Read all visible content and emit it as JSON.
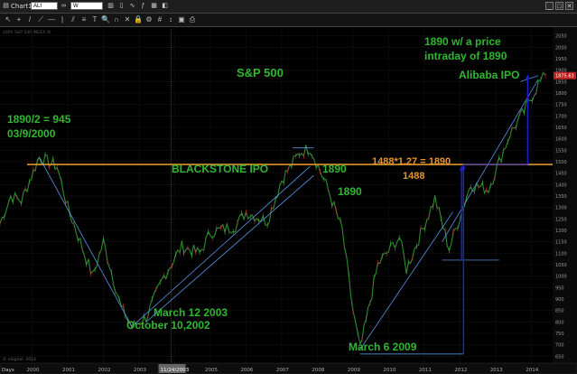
{
  "window": {
    "tab_label": "Chart1",
    "symbol": "ALI",
    "interval": "W"
  },
  "toolbar": {
    "icons": [
      "arrow-icon",
      "crosshair-icon",
      "trendline-icon",
      "ray-icon",
      "hline-icon",
      "vline-icon",
      "channel-icon",
      "fib-icon",
      "text-icon",
      "zoom-icon",
      "magnet-icon",
      "eraser-icon",
      "lock-icon",
      "settings-icon",
      "grid-icon",
      "scale-icon",
      "camera-icon",
      "print-icon"
    ],
    "glyphs": [
      "↖",
      "+",
      "/",
      "⟋",
      "—",
      "|",
      "⫽",
      "≡",
      "T",
      "🔍",
      "∩",
      "✕",
      "🔒",
      "⚙",
      "#",
      "↕",
      "▣",
      "⎙"
    ]
  },
  "chart_data": {
    "type": "line",
    "title": "S&P 500",
    "symbol_header": "$SPX  S&P 500 INDEX  W",
    "copyright": "© eSignal, 2014",
    "footer_left": "Days",
    "x_tick_labels": [
      "2000",
      "2001",
      "2002",
      "2003",
      "2004",
      "2005",
      "2006",
      "2007",
      "2008",
      "2009",
      "2010",
      "2011",
      "2012",
      "2013",
      "2014"
    ],
    "highlighted_x_label": "11/24/2003",
    "y_tick_labels": [
      650,
      700,
      750,
      800,
      850,
      900,
      950,
      1000,
      1050,
      1100,
      1150,
      1200,
      1250,
      1300,
      1350,
      1400,
      1450,
      1500,
      1550,
      1600,
      1650,
      1700,
      1750,
      1800,
      1850,
      1900,
      1950,
      2000,
      2050
    ],
    "ylim": [
      620,
      2080
    ],
    "xlim": [
      1999.1,
      2014.6
    ],
    "last_price_label": "1875.63",
    "series": [
      {
        "values_x": [
          1999.1,
          1999.4,
          1999.7,
          2000.2,
          2000.7,
          2001.0,
          2001.7,
          2002.0,
          2002.5,
          2002.8,
          2003.2,
          2003.7,
          2004.2,
          2004.7,
          2005.0,
          2005.7,
          2006.0,
          2006.6,
          2007.0,
          2007.5,
          2007.8,
          2008.3,
          2008.7,
          2009.0,
          2009.2,
          2009.7,
          2010.3,
          2010.5,
          2011.3,
          2011.7,
          2012.3,
          2012.8,
          2013.4,
          2013.8,
          2014.2,
          2014.4
        ],
        "values_y": [
          1230,
          1350,
          1330,
          1520,
          1480,
          1300,
          1000,
          1150,
          860,
          780,
          820,
          1000,
          1130,
          1100,
          1190,
          1220,
          1280,
          1240,
          1420,
          1540,
          1560,
          1380,
          1200,
          850,
          680,
          1050,
          1170,
          1030,
          1340,
          1120,
          1400,
          1380,
          1620,
          1720,
          1840,
          1876
        ]
      }
    ],
    "reference_line": {
      "y": 1488,
      "color": "#e0962c"
    },
    "annotations": [
      {
        "text": "1890/2 = 945",
        "color": "#2fb82f"
      },
      {
        "text": "03/9/2000",
        "color": "#2fb82f"
      },
      {
        "text": "S&P 500",
        "color": "#2fb82f"
      },
      {
        "text": "BLACKSTONE IPO",
        "color": "#2fb82f"
      },
      {
        "text": "1890",
        "color": "#2fb82f"
      },
      {
        "text": "1890",
        "color": "#2fb82f"
      },
      {
        "text": "March 12 2003",
        "color": "#2fb82f"
      },
      {
        "text": "October 10,2002",
        "color": "#2fb82f"
      },
      {
        "text": "March 6 2009",
        "color": "#2fb82f"
      },
      {
        "text": "1488*1.27 = 1890",
        "color": "#e0962c"
      },
      {
        "text": "1488",
        "color": "#e0962c"
      },
      {
        "text": "1890 w/ a price",
        "color": "#2fb82f"
      },
      {
        "text": "intraday of 1890",
        "color": "#2fb82f"
      },
      {
        "text": "Alibaba IPO",
        "color": "#2fb82f"
      }
    ],
    "grid": true
  },
  "colors": {
    "background": "#000000",
    "annotation_green": "#2fb82f",
    "orange": "#e0962c",
    "trendline": "#5fa8ff",
    "arrow": "#2020d0"
  }
}
